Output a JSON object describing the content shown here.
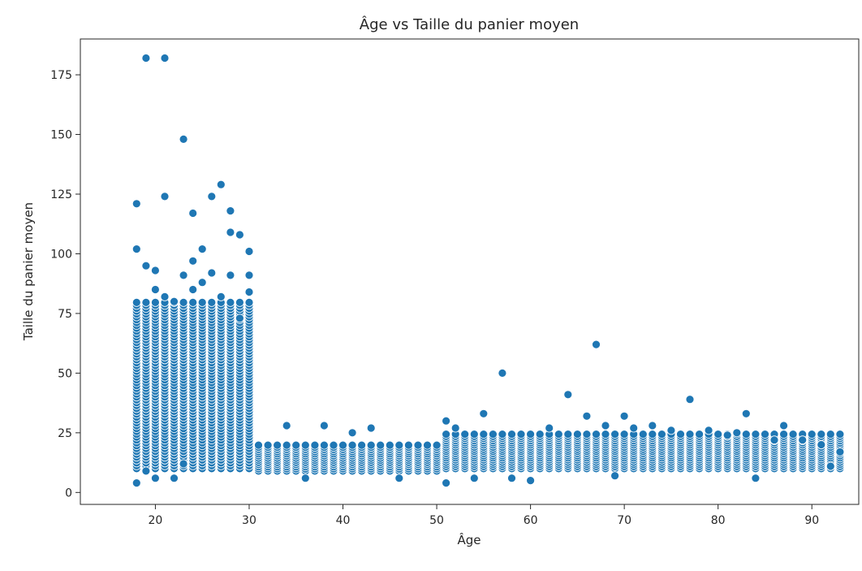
{
  "chart_data": {
    "type": "scatter",
    "title": "Âge vs Taille du panier moyen",
    "xlabel": "Âge",
    "ylabel": "Taille du panier moyen",
    "xlim": [
      12,
      95
    ],
    "ylim": [
      -5,
      190
    ],
    "xticks": [
      20,
      30,
      40,
      50,
      60,
      70,
      80,
      90
    ],
    "yticks": [
      0,
      25,
      50,
      75,
      100,
      125,
      150,
      175
    ],
    "grid": false,
    "marker_color": "#1f77b4",
    "bands": [
      {
        "x_from": 18,
        "x_to": 30,
        "y_low": 10,
        "y_high": 80
      },
      {
        "x_from": 31,
        "x_to": 50,
        "y_low": 9,
        "y_high": 20
      },
      {
        "x_from": 51,
        "x_to": 93,
        "y_low": 10,
        "y_high": 25
      }
    ],
    "points": [
      {
        "x": 18,
        "y": 121
      },
      {
        "x": 18,
        "y": 102
      },
      {
        "x": 18,
        "y": 4
      },
      {
        "x": 19,
        "y": 182
      },
      {
        "x": 19,
        "y": 95
      },
      {
        "x": 19,
        "y": 9
      },
      {
        "x": 20,
        "y": 93
      },
      {
        "x": 20,
        "y": 85
      },
      {
        "x": 20,
        "y": 6
      },
      {
        "x": 21,
        "y": 182
      },
      {
        "x": 21,
        "y": 124
      },
      {
        "x": 21,
        "y": 82
      },
      {
        "x": 22,
        "y": 80
      },
      {
        "x": 22,
        "y": 6
      },
      {
        "x": 23,
        "y": 148
      },
      {
        "x": 23,
        "y": 91
      },
      {
        "x": 23,
        "y": 12
      },
      {
        "x": 24,
        "y": 117
      },
      {
        "x": 24,
        "y": 97
      },
      {
        "x": 24,
        "y": 85
      },
      {
        "x": 25,
        "y": 102
      },
      {
        "x": 25,
        "y": 88
      },
      {
        "x": 26,
        "y": 124
      },
      {
        "x": 26,
        "y": 92
      },
      {
        "x": 27,
        "y": 129
      },
      {
        "x": 27,
        "y": 82
      },
      {
        "x": 28,
        "y": 118
      },
      {
        "x": 28,
        "y": 109
      },
      {
        "x": 28,
        "y": 91
      },
      {
        "x": 29,
        "y": 108
      },
      {
        "x": 29,
        "y": 73
      },
      {
        "x": 30,
        "y": 101
      },
      {
        "x": 30,
        "y": 91
      },
      {
        "x": 30,
        "y": 84
      },
      {
        "x": 34,
        "y": 28
      },
      {
        "x": 36,
        "y": 6
      },
      {
        "x": 38,
        "y": 28
      },
      {
        "x": 41,
        "y": 25
      },
      {
        "x": 43,
        "y": 27
      },
      {
        "x": 46,
        "y": 6
      },
      {
        "x": 51,
        "y": 30
      },
      {
        "x": 51,
        "y": 4
      },
      {
        "x": 52,
        "y": 27
      },
      {
        "x": 54,
        "y": 6
      },
      {
        "x": 55,
        "y": 33
      },
      {
        "x": 57,
        "y": 50
      },
      {
        "x": 58,
        "y": 6
      },
      {
        "x": 60,
        "y": 5
      },
      {
        "x": 62,
        "y": 27
      },
      {
        "x": 64,
        "y": 41
      },
      {
        "x": 66,
        "y": 32
      },
      {
        "x": 67,
        "y": 62
      },
      {
        "x": 68,
        "y": 28
      },
      {
        "x": 69,
        "y": 7
      },
      {
        "x": 70,
        "y": 32
      },
      {
        "x": 71,
        "y": 27
      },
      {
        "x": 73,
        "y": 28
      },
      {
        "x": 75,
        "y": 26
      },
      {
        "x": 77,
        "y": 39
      },
      {
        "x": 79,
        "y": 26
      },
      {
        "x": 81,
        "y": 24
      },
      {
        "x": 82,
        "y": 25
      },
      {
        "x": 83,
        "y": 33
      },
      {
        "x": 84,
        "y": 6
      },
      {
        "x": 86,
        "y": 22
      },
      {
        "x": 87,
        "y": 28
      },
      {
        "x": 89,
        "y": 22
      },
      {
        "x": 91,
        "y": 20
      },
      {
        "x": 92,
        "y": 11
      },
      {
        "x": 93,
        "y": 17
      }
    ]
  }
}
